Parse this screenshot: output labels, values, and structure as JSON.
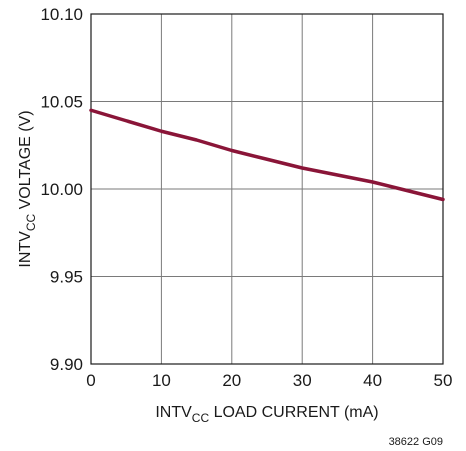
{
  "chart_data": {
    "type": "line",
    "xlabel": {
      "main": "INTV",
      "sub": "CC",
      "rest": " LOAD CURRENT (mA)"
    },
    "ylabel": {
      "main": "INTV",
      "sub": "CC",
      "rest": " VOLTAGE (V)"
    },
    "xlim": [
      0,
      50
    ],
    "ylim": [
      9.9,
      10.1
    ],
    "xticks": [
      0,
      10,
      20,
      30,
      40,
      50
    ],
    "yticks": [
      9.9,
      9.95,
      10.0,
      10.05,
      10.1
    ],
    "xtick_labels": [
      "0",
      "10",
      "20",
      "30",
      "40",
      "50"
    ],
    "ytick_labels": [
      "9.90",
      "9.95",
      "10.00",
      "10.05",
      "10.10"
    ],
    "grid": true,
    "series": [
      {
        "color": "#8a1538",
        "x": [
          0,
          5,
          10,
          15,
          20,
          25,
          30,
          35,
          40,
          45,
          50
        ],
        "y": [
          10.045,
          10.039,
          10.033,
          10.028,
          10.022,
          10.017,
          10.012,
          10.008,
          10.004,
          9.999,
          9.994
        ]
      }
    ],
    "note": "38622 G09"
  }
}
